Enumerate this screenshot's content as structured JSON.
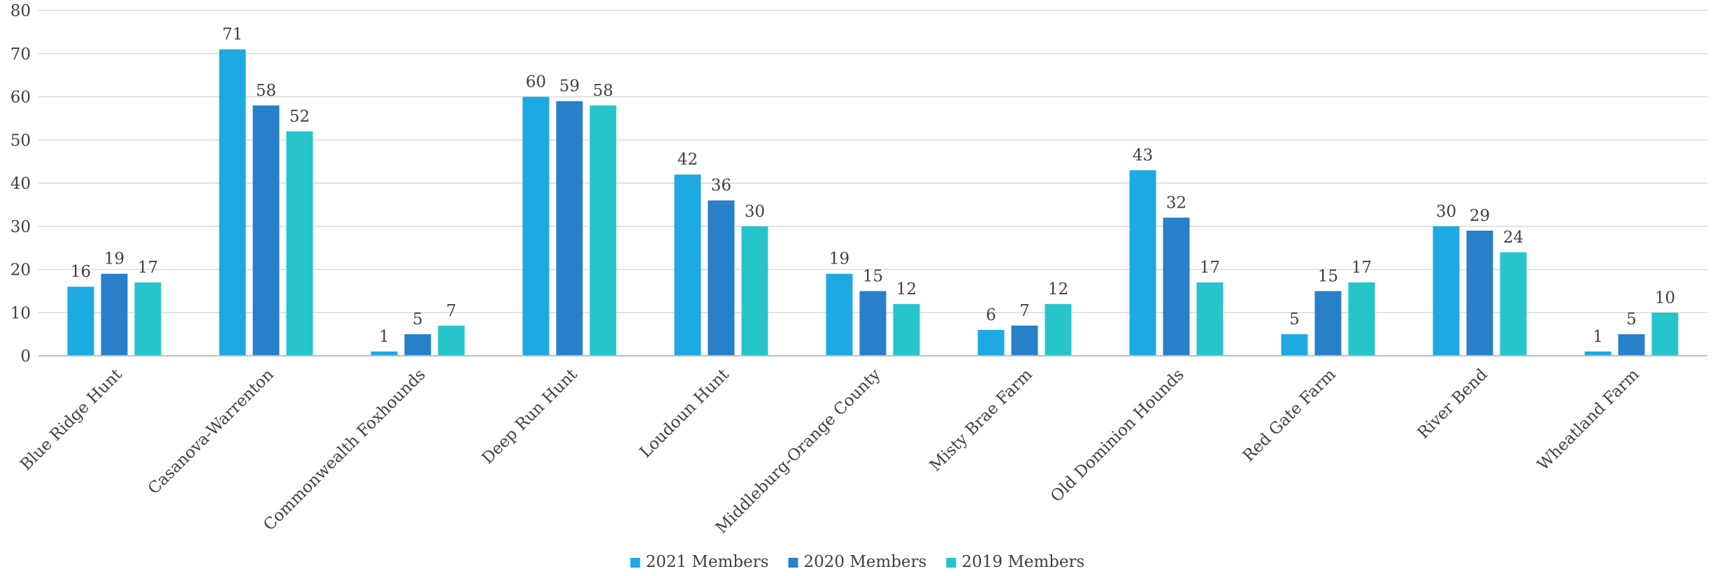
{
  "chart_data": {
    "type": "bar",
    "categories": [
      "Blue Ridge Hunt",
      "Casanova-Warrenton",
      "Commonwealth Foxhounds",
      "Deep Run Hunt",
      "Loudoun Hunt",
      "Middleburg-Orange County",
      "Misty Brae Farm",
      "Old Dominion Hounds",
      "Red Gate Farm",
      "River Bend",
      "Wheatland Farm"
    ],
    "series": [
      {
        "name": "2021 Members",
        "color": "#1ea9e1",
        "values": [
          16,
          71,
          1,
          60,
          42,
          19,
          6,
          43,
          5,
          30,
          1
        ]
      },
      {
        "name": "2020 Members",
        "color": "#2780c8",
        "values": [
          19,
          58,
          5,
          59,
          36,
          15,
          7,
          32,
          15,
          29,
          5
        ]
      },
      {
        "name": "2019 Members",
        "color": "#26c4cb",
        "values": [
          17,
          52,
          7,
          58,
          30,
          12,
          12,
          17,
          17,
          24,
          10
        ]
      }
    ],
    "ylim": [
      0,
      80
    ],
    "yticks": [
      0,
      10,
      20,
      30,
      40,
      50,
      60,
      70,
      80
    ],
    "grid": true,
    "legend": "bottom-center",
    "title": "",
    "xlabel": "",
    "ylabel": ""
  }
}
